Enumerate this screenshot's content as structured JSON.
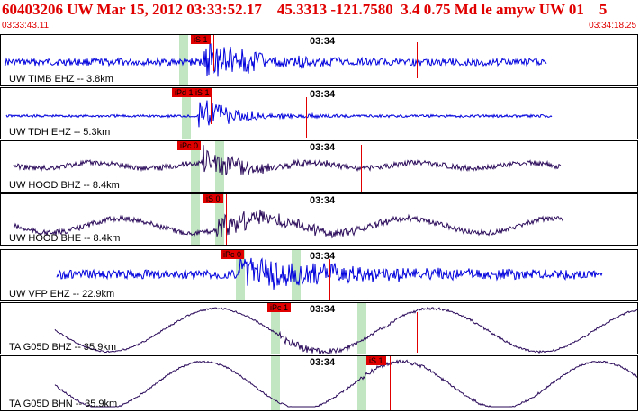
{
  "header": {
    "title": "60403206 UW Mar 15, 2012 03:33:52.17    45.3313 -121.7580  3.4 0.75 Md le amyw UW 01    5",
    "start_time": "03:33:43.11",
    "end_time": "03:34:18.25"
  },
  "colors": {
    "header_text": "#e00000",
    "pick": "#e00000",
    "window_shade": "#b8e6b8",
    "trace_blue": "#0000dd",
    "trace_purple": "#2a0a5a"
  },
  "traces": [
    {
      "label": "UW TIMB EHZ -- 3.8km",
      "time": "03:34",
      "picks": [
        "iS 1"
      ],
      "color_name": "blue"
    },
    {
      "label": "UW TDH EHZ -- 5.3km",
      "time": "03:34",
      "picks": [
        "iPd 1",
        "iS 1"
      ],
      "color_name": "blue"
    },
    {
      "label": "UW HOOD BHZ -- 8.4km",
      "time": "03:34",
      "picks": [
        "iPc 0"
      ],
      "color_name": "purple"
    },
    {
      "label": "UW HOOD BHE -- 8.4km",
      "time": "03:34",
      "picks": [
        "iS 0"
      ],
      "color_name": "purple"
    },
    {
      "label": "UW VFP EHZ -- 22.9km",
      "time": "03:34",
      "picks": [
        "iPc 0"
      ],
      "color_name": "blue"
    },
    {
      "label": "TA G05D BHZ -- 35.9km",
      "time": "03:34",
      "picks": [
        "iPc 1"
      ],
      "color_name": "purple"
    },
    {
      "label": "TA G05D BHN -- 35.9km",
      "time": "03:34",
      "picks": [
        "iS 1"
      ],
      "color_name": "purple"
    }
  ]
}
